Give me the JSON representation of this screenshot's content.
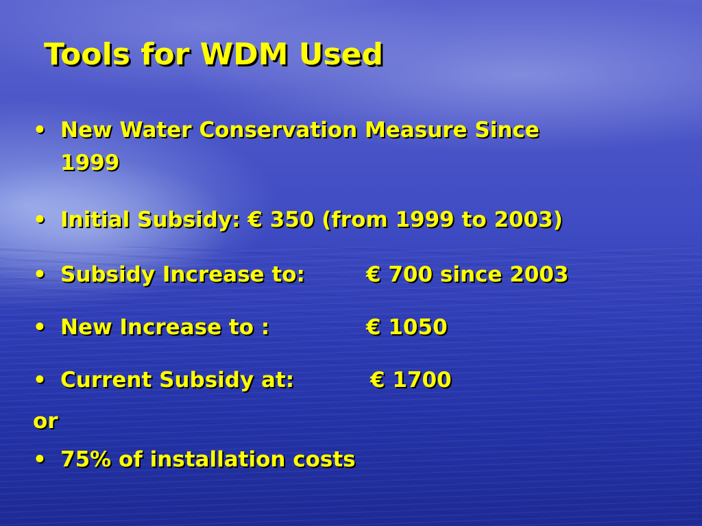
{
  "slide": {
    "title": "Tools for WDM Used",
    "bullet_glyph": "•",
    "items": [
      {
        "line1": "New Water Conservation Measure Since",
        "line2": "1999"
      },
      {
        "label": "Initial Subsidy: € 350 (from 1999 to 2003)"
      },
      {
        "label": "Subsidy Increase to:",
        "value": "€ 700 since 2003"
      },
      {
        "label": "New Increase to :",
        "value": "€ 1050"
      },
      {
        "label": "Current Subsidy at:",
        "value": "€ 1700"
      }
    ],
    "separator": "or",
    "last_item": {
      "label": "75% of installation costs"
    },
    "colors": {
      "text": "#ffff00",
      "shadow": "#000000",
      "background_top": "#5a63cf",
      "background_bottom": "#1d2a96"
    }
  }
}
